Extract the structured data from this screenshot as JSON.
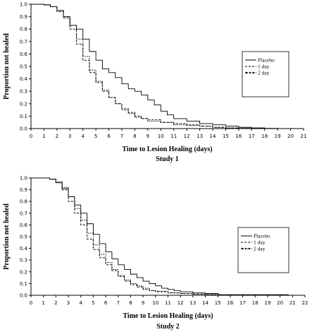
{
  "chart_data": [
    {
      "type": "line",
      "title": "Study 1",
      "xlabel": "Time to Lesion Healing (days)",
      "ylabel": "Proportion not healed",
      "xlim": [
        0,
        21
      ],
      "ylim": [
        0,
        1
      ],
      "xticks": [
        "0",
        "1",
        "2",
        "3",
        "4",
        "5",
        "6",
        "7",
        "8",
        "9",
        "10",
        "11",
        "12",
        "13",
        "14",
        "15",
        "16",
        "17",
        "18",
        "19",
        "20",
        "21"
      ],
      "yticks": [
        "0.0",
        "0.1",
        "0.2",
        "0.3",
        "0.4",
        "0.5",
        "0.6",
        "0.7",
        "0.8",
        "0.9",
        "1.0"
      ],
      "legend_position": "right",
      "grid": false,
      "series": [
        {
          "name": "Placebo",
          "style": "solid",
          "x": [
            0,
            1,
            1.5,
            2,
            2.5,
            3,
            3.5,
            4,
            4.5,
            5,
            5.5,
            6,
            6.5,
            7,
            7.5,
            8,
            8.5,
            9,
            9.5,
            10,
            10.5,
            11,
            12,
            13,
            14,
            15,
            16,
            17,
            18,
            19
          ],
          "y": [
            1.0,
            0.995,
            0.98,
            0.95,
            0.9,
            0.83,
            0.8,
            0.72,
            0.62,
            0.55,
            0.48,
            0.45,
            0.41,
            0.36,
            0.32,
            0.3,
            0.27,
            0.23,
            0.19,
            0.14,
            0.11,
            0.08,
            0.06,
            0.04,
            0.03,
            0.02,
            0.01,
            0.005,
            0.002,
            0.0
          ]
        },
        {
          "name": "1 day",
          "style": "dashed",
          "x": [
            0,
            1,
            1.5,
            2,
            2.5,
            3,
            3.5,
            4,
            4.5,
            5,
            5.5,
            6,
            6.5,
            7,
            7.5,
            8,
            8.5,
            9,
            10,
            11,
            12,
            13,
            14,
            15,
            16,
            17
          ],
          "y": [
            1.0,
            0.995,
            0.98,
            0.94,
            0.89,
            0.8,
            0.68,
            0.55,
            0.45,
            0.37,
            0.3,
            0.25,
            0.2,
            0.16,
            0.13,
            0.1,
            0.08,
            0.07,
            0.05,
            0.04,
            0.03,
            0.02,
            0.01,
            0.005,
            0.002,
            0.0
          ]
        },
        {
          "name": "2 day",
          "style": "dash-dot",
          "x": [
            0,
            1,
            1.5,
            2,
            2.5,
            3,
            3.5,
            4,
            4.5,
            5,
            5.5,
            6,
            6.5,
            7,
            7.5,
            8,
            8.5,
            9,
            10,
            11,
            12,
            13,
            14,
            15,
            16,
            17
          ],
          "y": [
            1.0,
            0.995,
            0.98,
            0.95,
            0.9,
            0.83,
            0.72,
            0.58,
            0.47,
            0.38,
            0.31,
            0.25,
            0.2,
            0.15,
            0.12,
            0.09,
            0.08,
            0.06,
            0.05,
            0.03,
            0.025,
            0.02,
            0.01,
            0.005,
            0.002,
            0.0
          ]
        }
      ]
    },
    {
      "type": "line",
      "title": "Study 2",
      "xlabel": "Time to Lesion Healing (days)",
      "ylabel": "Proportion not healed",
      "xlim": [
        0,
        22
      ],
      "ylim": [
        0,
        1
      ],
      "xticks": [
        "0",
        "1",
        "2",
        "3",
        "4",
        "5",
        "6",
        "7",
        "8",
        "9",
        "10",
        "11",
        "12",
        "13",
        "14",
        "15",
        "16",
        "17",
        "18",
        "19",
        "20",
        "21",
        "22"
      ],
      "yticks": [
        "0.0",
        "0.1",
        "0.2",
        "0.3",
        "0.4",
        "0.5",
        "0.6",
        "0.7",
        "0.8",
        "0.9",
        "1.0"
      ],
      "legend_position": "right",
      "grid": false,
      "series": [
        {
          "name": "Placebo",
          "style": "solid",
          "x": [
            0,
            1,
            1.5,
            2,
            2.5,
            3,
            3.5,
            4,
            4.5,
            5,
            5.5,
            6,
            6.5,
            7,
            7.5,
            8,
            8.5,
            9,
            9.5,
            10,
            10.5,
            11,
            11.5,
            12,
            13,
            14,
            15,
            15.1,
            20.7
          ],
          "y": [
            1.0,
            1.0,
            0.99,
            0.96,
            0.91,
            0.84,
            0.77,
            0.7,
            0.61,
            0.52,
            0.44,
            0.37,
            0.31,
            0.26,
            0.22,
            0.18,
            0.15,
            0.12,
            0.1,
            0.08,
            0.06,
            0.05,
            0.04,
            0.03,
            0.02,
            0.015,
            0.01,
            0.005,
            0.005
          ]
        },
        {
          "name": "1 day",
          "style": "dashed",
          "x": [
            0,
            1,
            1.5,
            2,
            2.5,
            3,
            3.5,
            4,
            4.5,
            5,
            5.5,
            6,
            6.5,
            7,
            7.5,
            8,
            8.5,
            9,
            9.5,
            10,
            11,
            12,
            13,
            14,
            15
          ],
          "y": [
            1.0,
            1.0,
            0.99,
            0.96,
            0.9,
            0.8,
            0.7,
            0.6,
            0.48,
            0.39,
            0.32,
            0.26,
            0.21,
            0.16,
            0.12,
            0.09,
            0.07,
            0.05,
            0.04,
            0.03,
            0.02,
            0.015,
            0.01,
            0.005,
            0.0
          ]
        },
        {
          "name": "2 day",
          "style": "dash-dot",
          "x": [
            0,
            1,
            1.5,
            2,
            2.5,
            3,
            3.5,
            4,
            4.5,
            5,
            5.5,
            6,
            6.5,
            7,
            7.5,
            8,
            8.5,
            9,
            9.5,
            10,
            11,
            12,
            13,
            14,
            15
          ],
          "y": [
            1.0,
            1.0,
            0.99,
            0.97,
            0.92,
            0.84,
            0.74,
            0.64,
            0.53,
            0.43,
            0.35,
            0.28,
            0.22,
            0.17,
            0.13,
            0.1,
            0.08,
            0.06,
            0.04,
            0.035,
            0.02,
            0.015,
            0.01,
            0.005,
            0.0
          ]
        }
      ]
    }
  ]
}
